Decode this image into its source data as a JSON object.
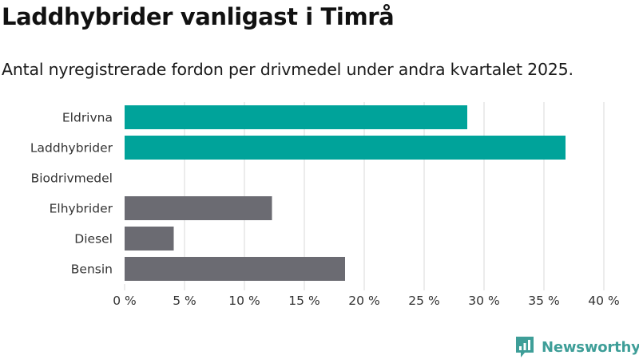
{
  "brand": {
    "name": "Newsworthy",
    "color": "#3e9e98"
  },
  "chart_data": {
    "type": "bar",
    "orientation": "horizontal",
    "title": "Laddhybrider vanligast i Timrå",
    "subtitle": "Antal nyregistrerade fordon per drivmedel under andra kvartalet 2025.",
    "xlabel": "",
    "ylabel": "",
    "unit": "%",
    "categories": [
      "Eldrivna",
      "Laddhybrider",
      "Biodrivmedel",
      "Elhybrider",
      "Diesel",
      "Bensin"
    ],
    "values": [
      28.6,
      36.8,
      0,
      12.3,
      4.1,
      18.4
    ],
    "colors": [
      "#00a39a",
      "#00a39a",
      "#00a39a",
      "#6b6b72",
      "#6b6b72",
      "#6b6b72"
    ],
    "xlim": [
      0,
      40
    ],
    "xticks": [
      0,
      5,
      10,
      15,
      20,
      25,
      30,
      35,
      40
    ],
    "xtick_labels": [
      "0 %",
      "5 %",
      "10 %",
      "15 %",
      "20 %",
      "25 %",
      "30 %",
      "35 %",
      "40 %"
    ],
    "grid": true,
    "legend": "none"
  }
}
